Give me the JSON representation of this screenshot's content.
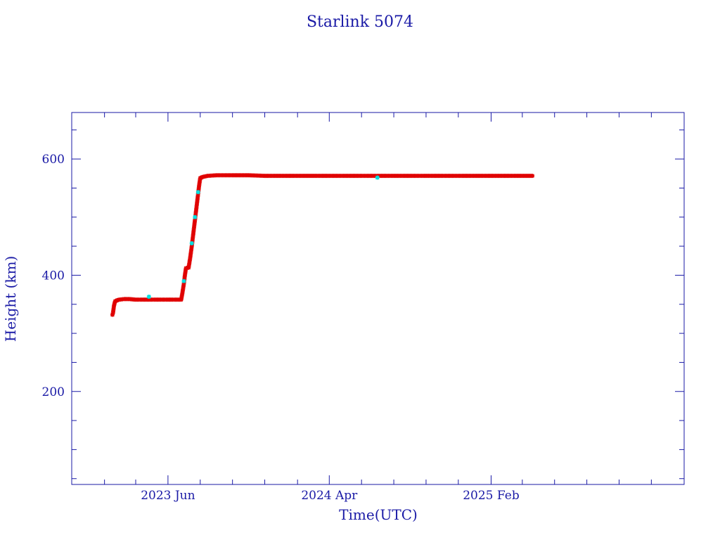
{
  "chart_data": {
    "type": "scatter",
    "title": "Starlink 5074",
    "xlabel": "Time(UTC)",
    "ylabel": "Height (km)",
    "x_range": [
      "2022-12-01",
      "2026-02-01"
    ],
    "ylim": [
      40,
      680
    ],
    "y_ticks": [
      200,
      400,
      600
    ],
    "x_ticks": [
      {
        "date": "2023-06-01",
        "label": "2023 Jun"
      },
      {
        "date": "2024-04-01",
        "label": "2024 Apr"
      },
      {
        "date": "2025-02-01",
        "label": "2025 Feb"
      }
    ],
    "grid": false,
    "legend": "none",
    "series": [
      {
        "color": "#e00000",
        "marker": "asterisk",
        "points": [
          [
            "2023-02-16",
            332
          ],
          [
            "2023-02-17",
            335
          ],
          [
            "2023-02-19",
            348
          ],
          [
            "2023-02-21",
            355
          ],
          [
            "2023-02-25",
            357
          ],
          [
            "2023-03-01",
            358
          ],
          [
            "2023-03-10",
            359
          ],
          [
            "2023-03-20",
            359
          ],
          [
            "2023-04-01",
            358
          ],
          [
            "2023-04-15",
            358
          ],
          [
            "2023-05-01",
            358
          ],
          [
            "2023-05-15",
            358
          ],
          [
            "2023-06-01",
            358
          ],
          [
            "2023-06-15",
            358
          ],
          [
            "2023-06-26",
            358
          ],
          [
            "2023-06-28",
            368
          ],
          [
            "2023-07-01",
            385
          ],
          [
            "2023-07-03",
            400
          ],
          [
            "2023-07-05",
            412
          ],
          [
            "2023-07-08",
            413
          ],
          [
            "2023-07-10",
            413
          ],
          [
            "2023-07-13",
            430
          ],
          [
            "2023-07-16",
            450
          ],
          [
            "2023-07-18",
            465
          ],
          [
            "2023-07-20",
            480
          ],
          [
            "2023-07-22",
            495
          ],
          [
            "2023-07-24",
            510
          ],
          [
            "2023-07-26",
            525
          ],
          [
            "2023-07-28",
            540
          ],
          [
            "2023-07-30",
            555
          ],
          [
            "2023-08-01",
            567
          ],
          [
            "2023-08-05",
            569
          ],
          [
            "2023-08-15",
            571
          ],
          [
            "2023-09-01",
            572
          ],
          [
            "2023-10-01",
            572
          ],
          [
            "2023-11-01",
            572
          ],
          [
            "2023-12-01",
            571
          ],
          [
            "2024-01-01",
            571
          ],
          [
            "2024-02-01",
            571
          ],
          [
            "2024-03-01",
            571
          ],
          [
            "2024-04-01",
            571
          ],
          [
            "2024-05-01",
            571
          ],
          [
            "2024-06-01",
            571
          ],
          [
            "2024-07-01",
            571
          ],
          [
            "2024-08-01",
            571
          ],
          [
            "2024-09-01",
            571
          ],
          [
            "2024-10-01",
            571
          ],
          [
            "2024-11-01",
            571
          ],
          [
            "2024-12-01",
            571
          ],
          [
            "2025-01-01",
            571
          ],
          [
            "2025-02-01",
            571
          ],
          [
            "2025-03-01",
            571
          ],
          [
            "2025-04-01",
            571
          ],
          [
            "2025-04-20",
            571
          ]
        ]
      },
      {
        "color": "#00e0e0",
        "marker": "asterisk",
        "points": [
          [
            "2023-04-26",
            363
          ],
          [
            "2023-07-01",
            390
          ],
          [
            "2023-07-16",
            455
          ],
          [
            "2023-07-22",
            500
          ],
          [
            "2023-07-28",
            543
          ],
          [
            "2024-07-01",
            568
          ]
        ]
      }
    ]
  }
}
